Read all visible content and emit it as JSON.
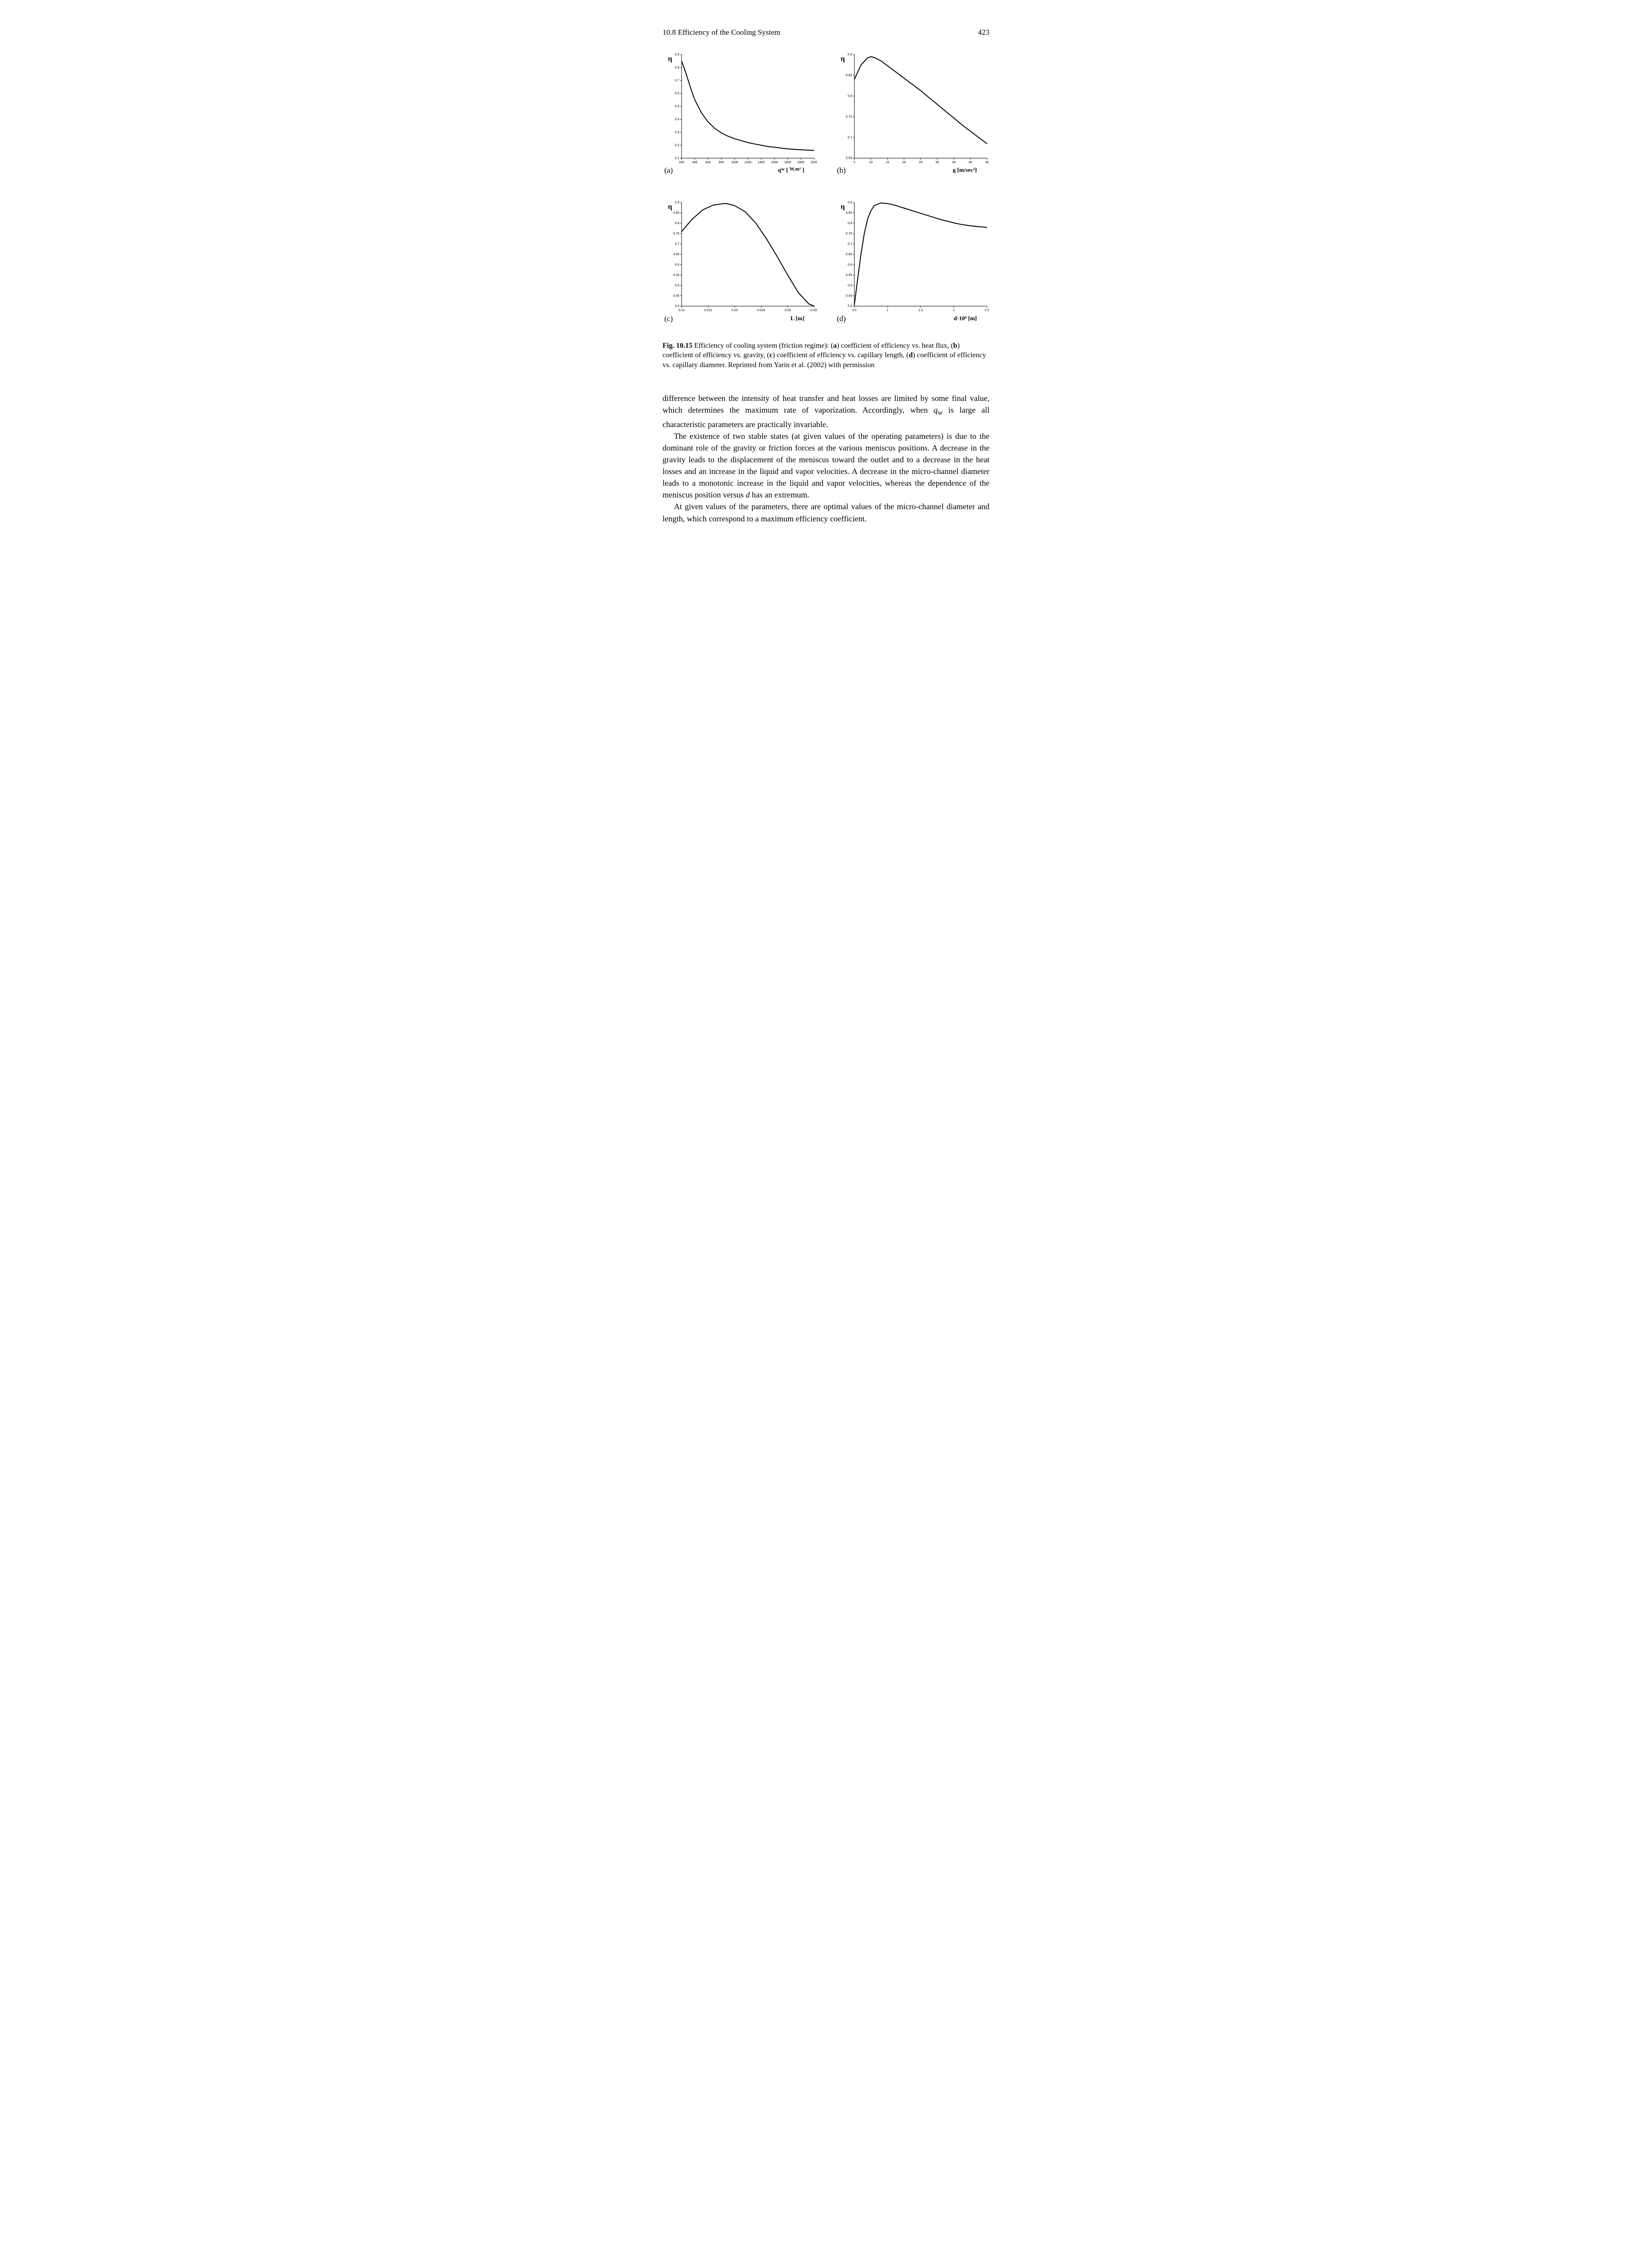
{
  "header": {
    "section": "10.8  Efficiency of the Cooling System",
    "page": "423"
  },
  "figure": {
    "panels": {
      "a": {
        "letter": "(a)",
        "y_symbol": "η",
        "x_label": "q",
        "x_label_sub": "w",
        "x_unit_html": "[ W/m² ]",
        "xlim": [
          200,
          2200
        ],
        "ylim": [
          0.1,
          0.9
        ],
        "xticks": [
          200,
          400,
          600,
          800,
          1000,
          1200,
          1400,
          1600,
          1800,
          2000,
          2200
        ],
        "yticks": [
          0.1,
          0.2,
          0.3,
          0.4,
          0.5,
          0.6,
          0.7,
          0.8,
          0.9
        ],
        "line_color": "#000000",
        "line_width": 2,
        "curve": [
          [
            200,
            0.85
          ],
          [
            250,
            0.78
          ],
          [
            300,
            0.7
          ],
          [
            350,
            0.62
          ],
          [
            400,
            0.55
          ],
          [
            500,
            0.45
          ],
          [
            600,
            0.38
          ],
          [
            700,
            0.33
          ],
          [
            800,
            0.295
          ],
          [
            900,
            0.27
          ],
          [
            1000,
            0.25
          ],
          [
            1100,
            0.235
          ],
          [
            1200,
            0.22
          ],
          [
            1300,
            0.21
          ],
          [
            1400,
            0.2
          ],
          [
            1500,
            0.19
          ],
          [
            1600,
            0.185
          ],
          [
            1700,
            0.178
          ],
          [
            1800,
            0.172
          ],
          [
            1900,
            0.168
          ],
          [
            2000,
            0.165
          ],
          [
            2100,
            0.162
          ],
          [
            2200,
            0.16
          ]
        ]
      },
      "b": {
        "letter": "(b)",
        "y_symbol": "η",
        "x_label": "g  [m/sec²]",
        "xlim": [
          5,
          45
        ],
        "ylim": [
          0.65,
          0.9
        ],
        "xticks": [
          5,
          10,
          15,
          20,
          25,
          30,
          35,
          40,
          45
        ],
        "yticks": [
          0.65,
          0.7,
          0.75,
          0.8,
          0.85,
          0.9
        ],
        "line_color": "#000000",
        "line_width": 2,
        "curve": [
          [
            5,
            0.84
          ],
          [
            7,
            0.875
          ],
          [
            9,
            0.892
          ],
          [
            10,
            0.895
          ],
          [
            11,
            0.893
          ],
          [
            13,
            0.885
          ],
          [
            15,
            0.873
          ],
          [
            18,
            0.855
          ],
          [
            20,
            0.843
          ],
          [
            23,
            0.825
          ],
          [
            25,
            0.813
          ],
          [
            28,
            0.793
          ],
          [
            30,
            0.78
          ],
          [
            33,
            0.76
          ],
          [
            35,
            0.747
          ],
          [
            38,
            0.727
          ],
          [
            40,
            0.715
          ],
          [
            43,
            0.697
          ],
          [
            45,
            0.685
          ]
        ]
      },
      "c": {
        "letter": "(c)",
        "y_symbol": "η",
        "x_label": "L  [m]",
        "xlim": [
          0.01,
          0.035
        ],
        "ylim": [
          0.4,
          0.9
        ],
        "xticks": [
          0.01,
          0.015,
          0.02,
          0.025,
          0.03,
          0.035
        ],
        "yticks": [
          0.4,
          0.45,
          0.5,
          0.55,
          0.6,
          0.65,
          0.7,
          0.75,
          0.8,
          0.85,
          0.9
        ],
        "line_color": "#000000",
        "line_width": 2,
        "curve": [
          [
            0.01,
            0.76
          ],
          [
            0.012,
            0.82
          ],
          [
            0.014,
            0.865
          ],
          [
            0.016,
            0.888
          ],
          [
            0.018,
            0.895
          ],
          [
            0.0185,
            0.895
          ],
          [
            0.02,
            0.885
          ],
          [
            0.022,
            0.855
          ],
          [
            0.024,
            0.8
          ],
          [
            0.026,
            0.725
          ],
          [
            0.028,
            0.64
          ],
          [
            0.03,
            0.55
          ],
          [
            0.032,
            0.465
          ],
          [
            0.034,
            0.41
          ],
          [
            0.035,
            0.4
          ]
        ]
      },
      "d": {
        "letter": "(d)",
        "y_symbol": "η",
        "x_label": "d·10⁴  [m]",
        "xlim": [
          0.5,
          2.5
        ],
        "ylim": [
          0.4,
          0.9
        ],
        "xticks": [
          0.5,
          1,
          1.5,
          2,
          2.5
        ],
        "yticks": [
          0.4,
          0.45,
          0.5,
          0.55,
          0.6,
          0.65,
          0.7,
          0.75,
          0.8,
          0.85,
          0.9
        ],
        "line_color": "#000000",
        "line_width": 2,
        "curve": [
          [
            0.5,
            0.405
          ],
          [
            0.55,
            0.53
          ],
          [
            0.6,
            0.65
          ],
          [
            0.65,
            0.75
          ],
          [
            0.7,
            0.82
          ],
          [
            0.75,
            0.86
          ],
          [
            0.8,
            0.885
          ],
          [
            0.9,
            0.898
          ],
          [
            1.0,
            0.895
          ],
          [
            1.1,
            0.888
          ],
          [
            1.2,
            0.878
          ],
          [
            1.3,
            0.868
          ],
          [
            1.4,
            0.858
          ],
          [
            1.5,
            0.848
          ],
          [
            1.6,
            0.838
          ],
          [
            1.7,
            0.828
          ],
          [
            1.8,
            0.818
          ],
          [
            1.9,
            0.81
          ],
          [
            2.0,
            0.802
          ],
          [
            2.1,
            0.795
          ],
          [
            2.2,
            0.79
          ],
          [
            2.3,
            0.786
          ],
          [
            2.4,
            0.783
          ],
          [
            2.5,
            0.78
          ]
        ]
      }
    },
    "caption": {
      "lead": "Fig. 10.15",
      "text_parts": [
        "  Efficiency of cooling system (friction regime): (",
        "a",
        ") coefficient of efficiency vs. heat flux, (",
        "b",
        ") coefficient of efficiency vs. gravity, (",
        "c",
        ") coefficient of efficiency vs. capillary length, (",
        "d",
        ") coefficient of efficiency vs. capillary diameter. Reprinted from Yarin et al. (2002) with permission"
      ]
    }
  },
  "body": {
    "p1_a": "difference between the intensity of heat transfer and heat losses are limited by some final value, which determines the maximum rate of vaporization. Accordingly, when ",
    "p1_q": "q",
    "p1_sub": "w",
    "p1_b": " is large all characteristic parameters are practically invariable.",
    "p2_a": "The existence of two stable states (at given values of the operating parameters) is due to the dominant role of the gravity or friction forces at the various meniscus positions. A decrease in the gravity leads to the displacement of the meniscus toward the outlet and to a decrease in the heat losses and an increase in the liquid and vapor velocities. A decrease in the micro-channel diameter leads to a monotonic increase in the liquid and vapor velocities, whereas the dependence of the meniscus position versus ",
    "p2_d": "d",
    "p2_b": " has an extremum.",
    "p3": "At given values of the parameters, there are optimal values of the micro-channel diameter and length, which correspond to a maximum efficiency coefficient."
  },
  "style": {
    "bg": "#ffffff",
    "text": "#000000",
    "axis_color": "#000000"
  }
}
